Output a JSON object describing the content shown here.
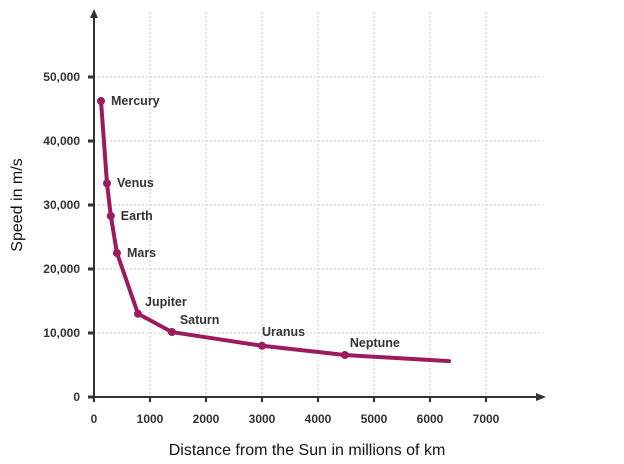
{
  "chart_data": {
    "type": "line",
    "title": "",
    "xlabel": "Distance from the Sun in millions of km",
    "ylabel": "Speed in m/s",
    "xlim": [
      0,
      8000
    ],
    "ylim": [
      0,
      60000
    ],
    "x_ticks": [
      0,
      1000,
      2000,
      3000,
      4000,
      5000,
      6000,
      7000
    ],
    "x_tick_labels": [
      "0",
      "1000",
      "2000",
      "3000",
      "4000",
      "5000",
      "6000",
      "7000"
    ],
    "y_ticks": [
      0,
      10000,
      20000,
      30000,
      40000,
      50000
    ],
    "y_tick_labels": [
      "0",
      "10,000",
      "20,000",
      "30,000",
      "40,000",
      "50,000"
    ],
    "grid": true,
    "line_color": "#9b1b5e",
    "grid_color": "#dcd8ea",
    "series": {
      "points": [
        {
          "label": "Mercury",
          "x": 125,
          "y": 46250
        },
        {
          "label": "Venus",
          "x": 232,
          "y": 33400
        },
        {
          "label": "Earth",
          "x": 300,
          "y": 28300
        },
        {
          "label": "Mars",
          "x": 410,
          "y": 22500
        },
        {
          "label": "Jupiter",
          "x": 786,
          "y": 13000
        },
        {
          "label": "Saturn",
          "x": 1390,
          "y": 10150
        },
        {
          "label": "Uranus",
          "x": 3000,
          "y": 8000
        },
        {
          "label": "Neptune",
          "x": 4480,
          "y": 6560
        }
      ],
      "tail": {
        "x": 6340,
        "y": 5600
      }
    }
  }
}
